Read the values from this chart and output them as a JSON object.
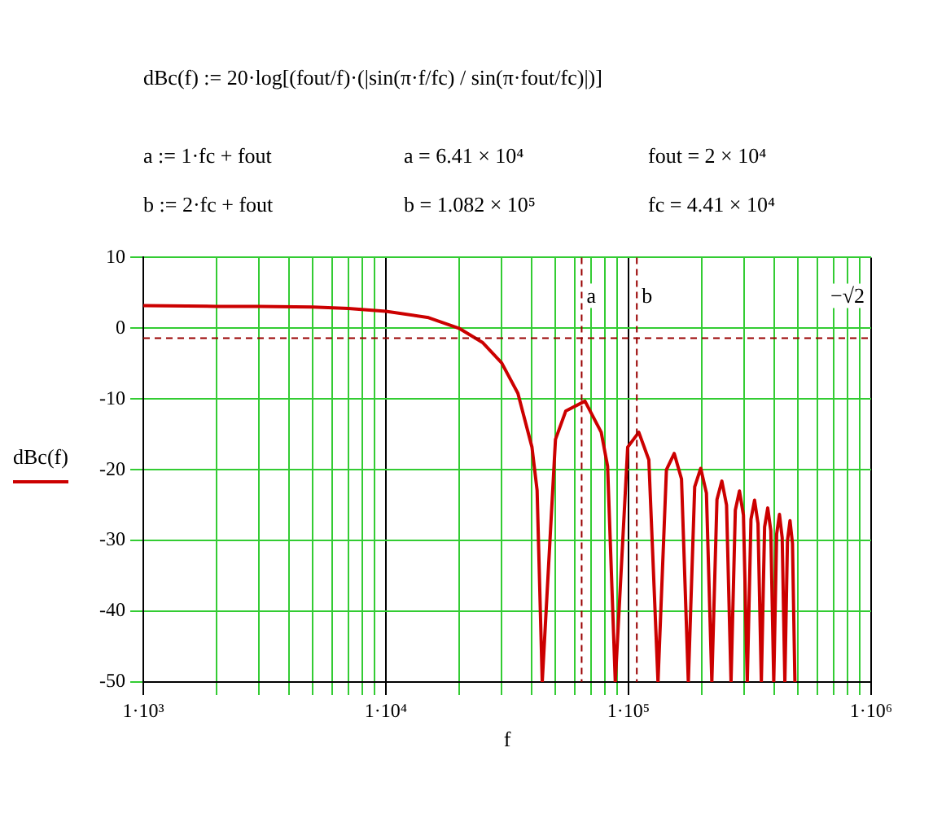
{
  "chart_data": {
    "type": "line",
    "xlabel": "f",
    "ylabel": "dBc(f)",
    "annotations": [
      "dBc(f) := 20·log[(fout/f)·(|sin(π·f/fc) / sin(π·fout/fc)|)]",
      "a := 1·fc + fout",
      "a = 6.41 × 10⁴",
      "fout = 2 × 10⁴",
      "b := 2·fc + fout",
      "b = 1.082 × 10⁵",
      "fc = 4.41 × 10⁴"
    ],
    "x": [
      1000,
      2000,
      3000,
      5000,
      7000,
      10000,
      15000,
      20000,
      25000,
      30000,
      35000,
      40000,
      42000,
      44100,
      50000,
      55125,
      66150,
      77175,
      82000,
      88200,
      99225,
      110250,
      121275,
      132300,
      143325,
      154350,
      165375,
      176400,
      187425,
      198450,
      209475,
      220500,
      231525,
      242550,
      253575,
      264600,
      275625,
      286650,
      297675,
      308700,
      319725,
      330750,
      341775,
      352800,
      363825,
      374850,
      385875,
      396900,
      407925,
      418950,
      429975,
      441000,
      452025,
      463050,
      474075,
      485100
    ],
    "series": [
      {
        "color": "#cc0000",
        "values": [
          3.2,
          3.1,
          3.1,
          3.0,
          2.8,
          2.4,
          1.5,
          0,
          -2.0,
          -4.9,
          -9.2,
          -16.8,
          -22.9,
          -50,
          -15.7,
          -11.7,
          -10.3,
          -14.7,
          -19.5,
          -50,
          -16.8,
          -14.7,
          -18.6,
          -50,
          -20.0,
          -17.7,
          -21.3,
          -50,
          -22.4,
          -19.8,
          -23.3,
          -50,
          -24.2,
          -21.6,
          -25.0,
          -50,
          -25.7,
          -23.0,
          -26.4,
          -50,
          -27.0,
          -24.3,
          -27.6,
          -50,
          -28.1,
          -25.4,
          -28.6,
          -50,
          -29.1,
          -26.3,
          -29.6,
          -50,
          -30.0,
          -27.2,
          -30.4,
          -50
        ]
      }
    ],
    "log": "x",
    "xlim": [
      1000,
      1000000
    ],
    "ylim": [
      -50,
      10
    ],
    "xticks": [
      {
        "value": 1000,
        "label": "1·10³"
      },
      {
        "value": 2000,
        "label": null
      },
      {
        "value": 3000,
        "label": null
      },
      {
        "value": 4000,
        "label": null
      },
      {
        "value": 5000,
        "label": null
      },
      {
        "value": 6000,
        "label": null
      },
      {
        "value": 7000,
        "label": null
      },
      {
        "value": 8000,
        "label": null
      },
      {
        "value": 9000,
        "label": null
      },
      {
        "value": 10000,
        "label": "1·10⁴"
      },
      {
        "value": 20000,
        "label": null
      },
      {
        "value": 30000,
        "label": null
      },
      {
        "value": 40000,
        "label": null
      },
      {
        "value": 50000,
        "label": null
      },
      {
        "value": 60000,
        "label": null
      },
      {
        "value": 70000,
        "label": null
      },
      {
        "value": 80000,
        "label": null
      },
      {
        "value": 90000,
        "label": null
      },
      {
        "value": 100000,
        "label": "1·10⁵"
      },
      {
        "value": 200000,
        "label": null
      },
      {
        "value": 300000,
        "label": null
      },
      {
        "value": 400000,
        "label": null
      },
      {
        "value": 500000,
        "label": null
      },
      {
        "value": 600000,
        "label": null
      },
      {
        "value": 700000,
        "label": null
      },
      {
        "value": 800000,
        "label": null
      },
      {
        "value": 900000,
        "label": null
      },
      {
        "value": 1000000,
        "label": "1·10⁶"
      }
    ],
    "yticks": [
      -50,
      -40,
      -30,
      -20,
      -10,
      0,
      10
    ],
    "ref_lines": [
      {
        "axis": "x",
        "value": 64100,
        "label": "a",
        "color": "#990000",
        "line_style": "dashed"
      },
      {
        "axis": "x",
        "value": 108200,
        "label": "b",
        "color": "#990000",
        "line_style": "dashed"
      },
      {
        "axis": "y",
        "value": -1.4,
        "label": "−√2",
        "color": "#990000",
        "line_style": "dashed"
      }
    ],
    "grid": true,
    "legend": false,
    "marker": "none",
    "line_style": "solid"
  }
}
